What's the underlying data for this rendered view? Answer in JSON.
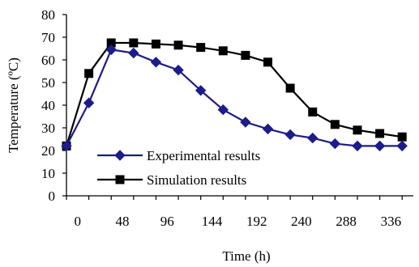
{
  "chart_data": {
    "type": "line",
    "xlabel": "Time (h)",
    "ylabel": "Temperature (ºC)",
    "xlim": [
      0,
      372
    ],
    "ylim": [
      0,
      80
    ],
    "x_ticks": [
      "0",
      "48",
      "96",
      "144",
      "192",
      "240",
      "288",
      "336"
    ],
    "y_ticks": [
      "0",
      "10",
      "20",
      "30",
      "40",
      "50",
      "60",
      "70",
      "80"
    ],
    "x_tick_values": [
      0,
      48,
      96,
      144,
      192,
      240,
      288,
      336
    ],
    "y_tick_values": [
      0,
      10,
      20,
      30,
      40,
      50,
      60,
      70,
      80
    ],
    "grid": false,
    "legend_position": "bottom-left",
    "series": [
      {
        "name": "Experimental results",
        "color": "#1c1c8a",
        "marker": "diamond",
        "x": [
          0,
          24,
          48,
          72,
          96,
          120,
          144,
          168,
          192,
          216,
          240,
          264,
          288,
          312,
          336,
          360
        ],
        "y": [
          22,
          41,
          64.5,
          63,
          59,
          55.5,
          46.5,
          38,
          32.5,
          29.5,
          27,
          25.5,
          23,
          22,
          22,
          22
        ]
      },
      {
        "name": "Simulation results",
        "color": "#000000",
        "marker": "square",
        "x": [
          0,
          24,
          48,
          72,
          96,
          120,
          144,
          168,
          192,
          216,
          240,
          264,
          288,
          312,
          336,
          360
        ],
        "y": [
          22,
          54,
          67.5,
          67.5,
          67,
          66.5,
          65.5,
          64,
          62,
          59,
          47.5,
          37,
          31.5,
          29,
          27.5,
          26
        ]
      }
    ]
  }
}
